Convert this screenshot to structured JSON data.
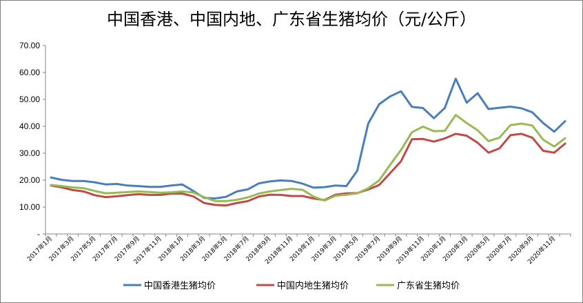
{
  "chart_data": {
    "type": "line",
    "title": "中国香港、中国内地、广东省生猪均价（元/公斤）",
    "y_ticks": [
      "-",
      "10.00",
      "20.00",
      "30.00",
      "40.00",
      "50.00",
      "60.00",
      "70.00"
    ],
    "ylim": [
      0,
      70
    ],
    "grid": false,
    "legend_position": "bottom",
    "x": [
      "2017年1月",
      "2017年2月",
      "2017年3月",
      "2017年4月",
      "2017年5月",
      "2017年6月",
      "2017年7月",
      "2017年8月",
      "2017年9月",
      "2017年10月",
      "2017年11月",
      "2017年12月",
      "2018年1月",
      "2018年2月",
      "2018年3月",
      "2018年4月",
      "2018年5月",
      "2018年6月",
      "2018年7月",
      "2018年8月",
      "2018年9月",
      "2018年10月",
      "2018年11月",
      "2018年12月",
      "2019年1月",
      "2019年2月",
      "2019年3月",
      "2019年4月",
      "2019年5月",
      "2019年6月",
      "2019年7月",
      "2019年8月",
      "2019年9月",
      "2019年10月",
      "2019年11月",
      "2019年12月",
      "2020年1月",
      "2020年2月",
      "2020年3月",
      "2020年4月",
      "2020年5月",
      "2020年6月",
      "2020年7月",
      "2020年8月",
      "2020年9月",
      "2020年10月",
      "2020年11月",
      "2020年12月"
    ],
    "x_tick_labels": [
      "2017年1月",
      "2017年3月",
      "2017年5月",
      "2017年7月",
      "2017年9月",
      "2017年11月",
      "2018年1月",
      "2018年3月",
      "2018年5月",
      "2018年7月",
      "2018年9月",
      "2018年11月",
      "2019年1月",
      "2019年3月",
      "2019年5月",
      "2019年7月",
      "2019年9月",
      "2019年11月",
      "2020年1月",
      "2020年3月",
      "2020年5月",
      "2020年7月",
      "2020年9月",
      "2020年11月"
    ],
    "series": [
      {
        "name": "中国香港生猪均价",
        "color": "#4a7ebb",
        "values": [
          21.0,
          20.1,
          19.7,
          19.7,
          19.2,
          18.4,
          18.6,
          18.0,
          17.8,
          17.5,
          17.5,
          18.0,
          18.4,
          16.0,
          13.4,
          13.2,
          13.8,
          15.8,
          16.6,
          18.8,
          19.5,
          19.9,
          19.7,
          18.7,
          17.2,
          17.4,
          18.0,
          17.8,
          23.5,
          41.0,
          48.2,
          51.1,
          53.0,
          47.2,
          46.8,
          43.0,
          46.8,
          57.7,
          48.8,
          52.3,
          46.4,
          46.9,
          47.3,
          46.7,
          45.2,
          41.2,
          38.0,
          41.9
        ]
      },
      {
        "name": "中国内地生猪均价",
        "color": "#be4b48",
        "values": [
          18.0,
          17.3,
          16.3,
          15.8,
          14.4,
          13.7,
          14.0,
          14.4,
          14.8,
          14.5,
          14.5,
          15.0,
          15.0,
          14.0,
          11.5,
          10.8,
          10.6,
          11.5,
          12.2,
          13.9,
          14.6,
          14.5,
          14.1,
          14.1,
          13.2,
          12.6,
          14.6,
          15.1,
          15.2,
          16.5,
          18.2,
          22.6,
          27.0,
          35.2,
          35.3,
          34.3,
          35.5,
          37.2,
          36.5,
          33.9,
          30.2,
          31.8,
          36.7,
          37.2,
          35.8,
          30.9,
          30.2,
          33.6
        ]
      },
      {
        "name": "广东省生猪均价",
        "color": "#98b954",
        "values": [
          18.2,
          17.8,
          17.3,
          17.0,
          16.0,
          15.1,
          15.3,
          15.6,
          15.8,
          15.6,
          15.3,
          15.5,
          15.8,
          15.4,
          13.7,
          12.2,
          12.2,
          12.7,
          13.6,
          15.0,
          15.8,
          16.3,
          16.8,
          16.4,
          13.9,
          12.4,
          14.2,
          14.6,
          15.1,
          17.0,
          19.9,
          25.7,
          31.2,
          37.8,
          39.9,
          38.2,
          38.3,
          44.2,
          41.2,
          38.5,
          34.5,
          35.8,
          40.4,
          41.0,
          40.3,
          35.0,
          32.5,
          35.6
        ]
      }
    ]
  }
}
